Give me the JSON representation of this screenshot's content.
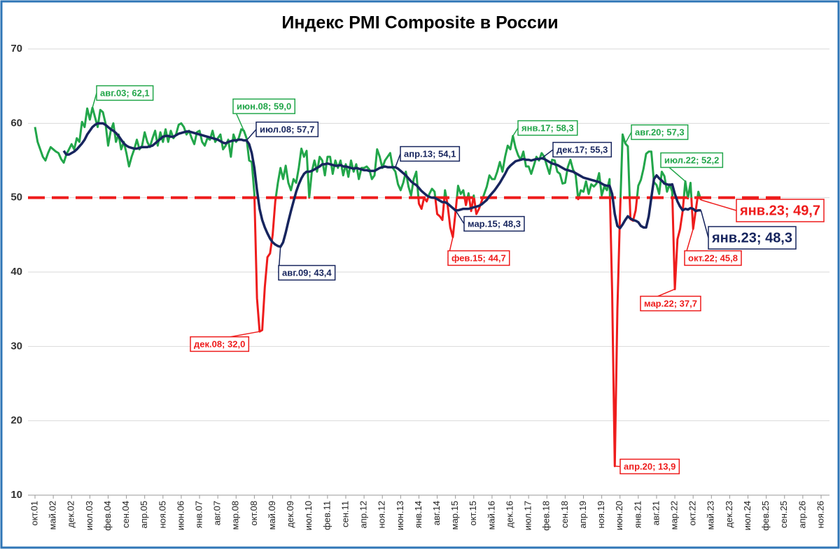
{
  "chart_data": {
    "type": "line",
    "title": "Индекс PMI Composite в России",
    "categories": [
      "окт.01",
      null,
      null,
      null,
      null,
      null,
      null,
      "май.02",
      null,
      null,
      null,
      null,
      null,
      null,
      "дек.02",
      null,
      null,
      null,
      null,
      null,
      null,
      "июл.03",
      null,
      null,
      null,
      null,
      null,
      null,
      "фев.04",
      null,
      null,
      null,
      null,
      null,
      null,
      "сен.04",
      null,
      null,
      null,
      null,
      null,
      null,
      "апр.05",
      null,
      null,
      null,
      null,
      null,
      null,
      "ноя.05",
      null,
      null,
      null,
      null,
      null,
      null,
      "июн.06",
      null,
      null,
      null,
      null,
      null,
      null,
      "янв.07",
      null,
      null,
      null,
      null,
      null,
      null,
      "авг.07",
      null,
      null,
      null,
      null,
      null,
      null,
      "мар.08",
      null,
      null,
      null,
      null,
      null,
      null,
      "окт.08",
      null,
      null,
      null,
      null,
      null,
      null,
      "май.09",
      null,
      null,
      null,
      null,
      null,
      null,
      "дек.09",
      null,
      null,
      null,
      null,
      null,
      null,
      "июл.10",
      null,
      null,
      null,
      null,
      null,
      null,
      "фев.11",
      null,
      null,
      null,
      null,
      null,
      null,
      "сен.11",
      null,
      null,
      null,
      null,
      null,
      null,
      "апр.12",
      null,
      null,
      null,
      null,
      null,
      null,
      "ноя.12",
      null,
      null,
      null,
      null,
      null,
      null,
      "июн.13",
      null,
      null,
      null,
      null,
      null,
      null,
      "янв.14",
      null,
      null,
      null,
      null,
      null,
      null,
      "авг.14",
      null,
      null,
      null,
      null,
      null,
      null,
      "мар.15",
      null,
      null,
      null,
      null,
      null,
      null,
      "окт.15",
      null,
      null,
      null,
      null,
      null,
      null,
      "май.16",
      null,
      null,
      null,
      null,
      null,
      null,
      "дек.16",
      null,
      null,
      null,
      null,
      null,
      null,
      "июл.17",
      null,
      null,
      null,
      null,
      null,
      null,
      "фев.18",
      null,
      null,
      null,
      null,
      null,
      null,
      "сен.18",
      null,
      null,
      null,
      null,
      null,
      null,
      "апр.19",
      null,
      null,
      null,
      null,
      null,
      null,
      "ноя.19",
      null,
      null,
      null,
      null,
      null,
      null,
      "июн.20",
      null,
      null,
      null,
      null,
      null,
      null,
      "янв.21",
      null,
      null,
      null,
      null,
      null,
      null,
      "авг.21",
      null,
      null,
      null,
      null,
      null,
      null,
      "мар.22",
      null,
      null,
      null,
      null,
      null,
      null,
      "окт.22",
      null,
      null,
      null,
      null,
      null,
      null,
      "май.23",
      null,
      null,
      null,
      null,
      null,
      null,
      "дек.23",
      null,
      null,
      null,
      null,
      null,
      null,
      "июл.24",
      null,
      null,
      null,
      null,
      null,
      null,
      "фев.25",
      null,
      null,
      null,
      null,
      null,
      null,
      "сен.25",
      null,
      null,
      null,
      null,
      null,
      null,
      "апр.26",
      null,
      null,
      null,
      null,
      null,
      null,
      "ноя.26"
    ],
    "series": [
      {
        "color_above": "#22a64a",
        "color_below": "#ee1c1c",
        "threshold": 50,
        "values": [
          59.5,
          57.5,
          56.5,
          55.5,
          55.0,
          56.0,
          56.8,
          56.5,
          56.2,
          56.0,
          55.2,
          54.7,
          55.8,
          56.5,
          57.2,
          56.5,
          58.0,
          57.5,
          60.2,
          59.5,
          62.0,
          60.5,
          62.1,
          60.8,
          59.5,
          61.8,
          61.5,
          60.0,
          57.0,
          59.0,
          60.0,
          57.5,
          58.5,
          56.5,
          57.5,
          56.0,
          54.2,
          55.5,
          56.5,
          57.8,
          56.5,
          57.0,
          58.8,
          57.5,
          56.8,
          58.0,
          59.0,
          57.0,
          58.8,
          57.5,
          59.2,
          57.5,
          59.0,
          58.0,
          58.5,
          59.8,
          60.0,
          59.5,
          58.5,
          59.0,
          58.0,
          57.2,
          58.8,
          59.0,
          57.5,
          57.0,
          58.0,
          57.8,
          59.0,
          57.5,
          58.0,
          58.5,
          56.5,
          57.0,
          57.8,
          55.5,
          58.5,
          57.5,
          58.0,
          59.2,
          59.0,
          58.0,
          55.0,
          54.8,
          50.5,
          36.5,
          32.0,
          32.2,
          38.0,
          42.0,
          42.5,
          45.0,
          49.5,
          52.0,
          54.0,
          52.5,
          54.3,
          52.0,
          51.0,
          52.5,
          52.0,
          54.0,
          56.6,
          55.5,
          56.3,
          50.0,
          53.5,
          55.0,
          53.5,
          55.5,
          55.0,
          53.0,
          55.5,
          55.5,
          53.2,
          55.0,
          54.0,
          55.0,
          53.0,
          54.5,
          52.8,
          55.0,
          53.5,
          54.5,
          52.5,
          54.0,
          54.0,
          54.2,
          53.8,
          52.5,
          53.0,
          56.5,
          55.5,
          54.0,
          55.0,
          55.5,
          56.0,
          54.0,
          53.5,
          51.8,
          51.0,
          52.0,
          53.5,
          51.5,
          50.3,
          52.5,
          53.5,
          49.2,
          48.5,
          50.0,
          49.5,
          50.5,
          51.2,
          50.8,
          47.8,
          47.5,
          47.0,
          51.0,
          49.0,
          46.0,
          44.7,
          48.0,
          51.6,
          50.5,
          51.0,
          49.0,
          50.6,
          48.2,
          50.3,
          47.8,
          48.5,
          49.5,
          50.5,
          51.5,
          53.0,
          52.5,
          52.5,
          53.5,
          54.8,
          53.5,
          55.5,
          57.0,
          56.5,
          58.3,
          56.7,
          55.7,
          55.1,
          56.2,
          54.2,
          54.2,
          53.2,
          54.3,
          55.5,
          55.0,
          56.0,
          55.5,
          54.3,
          53.2,
          55.1,
          55.0,
          53.5,
          53.2,
          51.9,
          52.0,
          54.1,
          55.1,
          53.8,
          53.1,
          49.8,
          51.0,
          50.8,
          52.2,
          50.5,
          51.8,
          51.5,
          51.9,
          53.3,
          50.3,
          51.5,
          51.0,
          52.5,
          37.1,
          13.9,
          35.0,
          47.8,
          58.5,
          57.3,
          56.9,
          47.1,
          46.9,
          48.3,
          51.6,
          52.4,
          53.9,
          55.9,
          56.2,
          56.2,
          52.1,
          51.7,
          50.5,
          53.5,
          52.9,
          50.8,
          51.8,
          50.8,
          37.7,
          44.4,
          45.8,
          48.2,
          52.2,
          49.9,
          52.0,
          45.8,
          48.3,
          50.8,
          49.7,
          null,
          null,
          null,
          null,
          null,
          null,
          null,
          null,
          null,
          null,
          null,
          null,
          null,
          null,
          null,
          null,
          null,
          null,
          null,
          null,
          null,
          null,
          null,
          null,
          null,
          null,
          null,
          null,
          null,
          null,
          null,
          null,
          null,
          null,
          null,
          null,
          null,
          null,
          null,
          null,
          null,
          null,
          null,
          null,
          null,
          null
        ]
      },
      {
        "color": "#17255e",
        "values": [
          null,
          null,
          null,
          null,
          null,
          null,
          null,
          null,
          null,
          null,
          null,
          56.3,
          55.8,
          55.8,
          56.0,
          56.2,
          56.5,
          56.9,
          57.3,
          57.8,
          58.5,
          59.0,
          59.5,
          59.8,
          60.0,
          60.0,
          60.0,
          59.8,
          59.5,
          59.2,
          59.0,
          58.7,
          58.3,
          57.8,
          57.3,
          57.0,
          56.8,
          56.7,
          56.6,
          56.6,
          56.7,
          56.8,
          56.8,
          56.8,
          56.9,
          57.0,
          57.3,
          57.6,
          57.9,
          58.2,
          58.3,
          58.3,
          58.2,
          58.2,
          58.4,
          58.6,
          58.7,
          58.8,
          58.9,
          58.9,
          58.8,
          58.7,
          58.6,
          58.5,
          58.4,
          58.3,
          58.2,
          58.1,
          58.0,
          57.9,
          57.8,
          57.6,
          57.4,
          57.3,
          57.5,
          57.6,
          57.7,
          57.7,
          57.8,
          57.8,
          57.7,
          57.7,
          57.2,
          56.0,
          54.0,
          51.0,
          48.5,
          47.0,
          46.0,
          45.2,
          44.5,
          44.0,
          43.7,
          43.5,
          43.4,
          44.0,
          45.3,
          46.8,
          48.2,
          49.5,
          50.8,
          51.8,
          52.6,
          53.2,
          53.5,
          53.5,
          53.6,
          53.8,
          54.0,
          54.2,
          54.5,
          54.5,
          54.6,
          54.5,
          54.4,
          54.3,
          54.3,
          54.4,
          54.2,
          54.2,
          54.1,
          54.0,
          53.9,
          54.0,
          53.9,
          53.8,
          53.7,
          53.7,
          53.6,
          53.6,
          53.6,
          53.8,
          54.0,
          54.1,
          54.2,
          54.1,
          54.1,
          54.1,
          54.1,
          53.9,
          53.6,
          53.3,
          53.0,
          52.6,
          52.2,
          51.9,
          51.7,
          51.3,
          50.9,
          50.6,
          50.3,
          50.1,
          50.0,
          50.0,
          49.8,
          49.6,
          49.4,
          49.4,
          49.2,
          48.9,
          48.6,
          48.3,
          48.3,
          48.4,
          48.5,
          48.5,
          48.5,
          48.6,
          48.7,
          48.8,
          48.9,
          49.1,
          49.4,
          49.7,
          50.2,
          50.6,
          51.0,
          51.5,
          52.0,
          52.6,
          53.2,
          53.9,
          54.3,
          54.6,
          54.9,
          55.0,
          55.1,
          55.2,
          55.1,
          55.1,
          55.0,
          55.1,
          55.2,
          55.2,
          55.3,
          55.2,
          55.0,
          54.8,
          54.6,
          54.5,
          54.4,
          54.2,
          54.0,
          53.8,
          53.7,
          53.6,
          53.5,
          53.3,
          53.1,
          52.9,
          52.7,
          52.6,
          52.5,
          52.4,
          52.3,
          52.2,
          52.1,
          51.9,
          51.7,
          51.6,
          51.6,
          50.5,
          47.8,
          46.2,
          45.9,
          46.4,
          47.0,
          47.5,
          47.2,
          47.0,
          46.9,
          46.7,
          46.2,
          46.0,
          46.0,
          47.5,
          50.0,
          52.5,
          53.0,
          52.6,
          52.3,
          51.9,
          51.8,
          51.7,
          51.8,
          50.5,
          49.5,
          48.8,
          48.3,
          48.5,
          48.4,
          48.6,
          48.5,
          48.2,
          48.3,
          48.3,
          null,
          null,
          null,
          null,
          null,
          null,
          null,
          null,
          null,
          null,
          null,
          null,
          null,
          null,
          null,
          null,
          null,
          null,
          null,
          null,
          null,
          null,
          null,
          null,
          null,
          null,
          null,
          null,
          null,
          null,
          null,
          null,
          null,
          null,
          null,
          null,
          null,
          null,
          null,
          null,
          null,
          null,
          null,
          null,
          null,
          null
        ]
      }
    ],
    "reference_line": {
      "value": 50,
      "color": "#ee1c1c"
    },
    "ylim": [
      10,
      70
    ],
    "yticks": [
      10,
      20,
      30,
      40,
      50,
      60,
      70
    ],
    "grid": true,
    "annotations": [
      {
        "text": "авг.03; 62,1",
        "color": "#22a64a"
      },
      {
        "text": "июн.08; 59,0",
        "color": "#22a64a"
      },
      {
        "text": "июл.08; 57,7",
        "color": "#17255e"
      },
      {
        "text": "дек.08; 32,0",
        "color": "#ee1c1c"
      },
      {
        "text": "авг.09; 43,4",
        "color": "#17255e"
      },
      {
        "text": "апр.13; 54,1",
        "color": "#17255e"
      },
      {
        "text": "фев.15; 44,7",
        "color": "#ee1c1c"
      },
      {
        "text": "мар.15; 48,3",
        "color": "#17255e"
      },
      {
        "text": "янв.17; 58,3",
        "color": "#22a64a"
      },
      {
        "text": "дек.17; 55,3",
        "color": "#17255e"
      },
      {
        "text": "апр.20; 13,9",
        "color": "#ee1c1c"
      },
      {
        "text": "авг.20; 57,3",
        "color": "#22a64a"
      },
      {
        "text": "мар.22; 37,7",
        "color": "#ee1c1c"
      },
      {
        "text": "июл.22; 52,2",
        "color": "#22a64a"
      },
      {
        "text": "окт.22; 45,8",
        "color": "#ee1c1c"
      },
      {
        "text": "янв.23; 49,7",
        "color": "#ee1c1c"
      },
      {
        "text": "янв.23; 48,3",
        "color": "#17255e"
      }
    ]
  }
}
